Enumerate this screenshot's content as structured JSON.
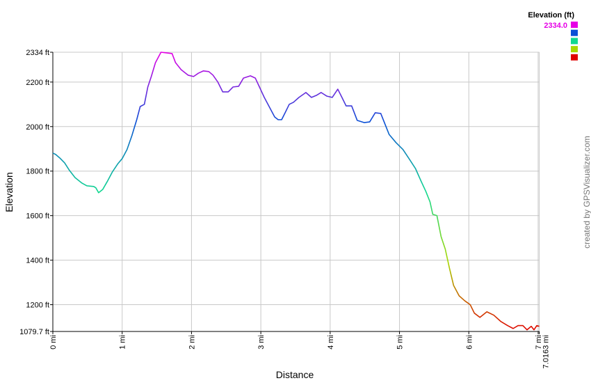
{
  "chart_data": {
    "type": "line",
    "x_label": "Distance",
    "y_label": "Elevation",
    "watermark": "created by GPSVisualizer.com",
    "grid": true,
    "xlim": [
      0,
      7.0163
    ],
    "ylim": [
      1079.7,
      2334
    ],
    "xticks": [
      {
        "value": 0,
        "label": "0 mi"
      },
      {
        "value": 1,
        "label": "1 mi"
      },
      {
        "value": 2,
        "label": "2 mi"
      },
      {
        "value": 3,
        "label": "3 mi"
      },
      {
        "value": 4,
        "label": "4 mi"
      },
      {
        "value": 5,
        "label": "5 mi"
      },
      {
        "value": 6,
        "label": "6 mi"
      },
      {
        "value": 7,
        "label": "7 mi"
      },
      {
        "value": 7.0163,
        "label": "7.0163 mi"
      }
    ],
    "yticks": [
      {
        "value": 1079.7,
        "label": "1079.7 ft"
      },
      {
        "value": 1200,
        "label": "1200 ft"
      },
      {
        "value": 1400,
        "label": "1400 ft"
      },
      {
        "value": 1600,
        "label": "1600 ft"
      },
      {
        "value": 1800,
        "label": "1800 ft"
      },
      {
        "value": 2000,
        "label": "2000 ft"
      },
      {
        "value": 2200,
        "label": "2200 ft"
      },
      {
        "value": 2334,
        "label": "2334 ft"
      }
    ],
    "color_scale": {
      "title": "Elevation (ft)",
      "stops": [
        {
          "value": 2334,
          "label": "2334.0",
          "color": "#e600e6"
        },
        {
          "value": 2020.4,
          "color": "#0a4fd6"
        },
        {
          "value": 1706.9,
          "color": "#10d890"
        },
        {
          "value": 1393.3,
          "color": "#a8d800"
        },
        {
          "value": 1079.7,
          "color": "#e00000"
        }
      ]
    },
    "x": [
      0,
      0.04,
      0.1,
      0.17,
      0.24,
      0.32,
      0.42,
      0.49,
      0.59,
      0.62,
      0.66,
      0.72,
      0.79,
      0.86,
      0.94,
      1.0,
      1.07,
      1.14,
      1.21,
      1.26,
      1.32,
      1.37,
      1.42,
      1.48,
      1.56,
      1.64,
      1.72,
      1.77,
      1.85,
      1.95,
      2.03,
      2.1,
      2.17,
      2.25,
      2.31,
      2.38,
      2.45,
      2.53,
      2.6,
      2.68,
      2.75,
      2.85,
      2.92,
      2.98,
      3.05,
      3.13,
      3.2,
      3.25,
      3.3,
      3.35,
      3.41,
      3.47,
      3.55,
      3.65,
      3.73,
      3.8,
      3.87,
      3.95,
      4.03,
      4.11,
      4.17,
      4.23,
      4.31,
      4.39,
      4.49,
      4.57,
      4.65,
      4.73,
      4.79,
      4.85,
      4.95,
      5.05,
      5.15,
      5.23,
      5.31,
      5.38,
      5.44,
      5.48,
      5.54,
      5.6,
      5.66,
      5.72,
      5.78,
      5.86,
      5.94,
      6.02,
      6.08,
      6.16,
      6.26,
      6.36,
      6.46,
      6.56,
      6.64,
      6.71,
      6.78,
      6.84,
      6.9,
      6.94,
      6.98,
      7.0163
    ],
    "values": [
      1881,
      1875,
      1859,
      1837,
      1803,
      1771,
      1746,
      1734,
      1731,
      1725,
      1703,
      1718,
      1756,
      1797,
      1834,
      1856,
      1897,
      1959,
      2031,
      2090,
      2100,
      2178,
      2225,
      2287,
      2334,
      2331,
      2328,
      2287,
      2256,
      2231,
      2225,
      2240,
      2250,
      2247,
      2231,
      2200,
      2156,
      2156,
      2178,
      2181,
      2218,
      2228,
      2218,
      2178,
      2131,
      2084,
      2043,
      2031,
      2031,
      2062,
      2100,
      2109,
      2131,
      2153,
      2131,
      2140,
      2153,
      2137,
      2131,
      2168,
      2131,
      2093,
      2093,
      2028,
      2018,
      2021,
      2062,
      2059,
      2012,
      1965,
      1928,
      1897,
      1850,
      1812,
      1756,
      1709,
      1662,
      1606,
      1600,
      1506,
      1450,
      1365,
      1287,
      1240,
      1218,
      1200,
      1162,
      1143,
      1168,
      1153,
      1125,
      1106,
      1093,
      1106,
      1106,
      1087,
      1103,
      1087,
      1106,
      1103
    ]
  }
}
